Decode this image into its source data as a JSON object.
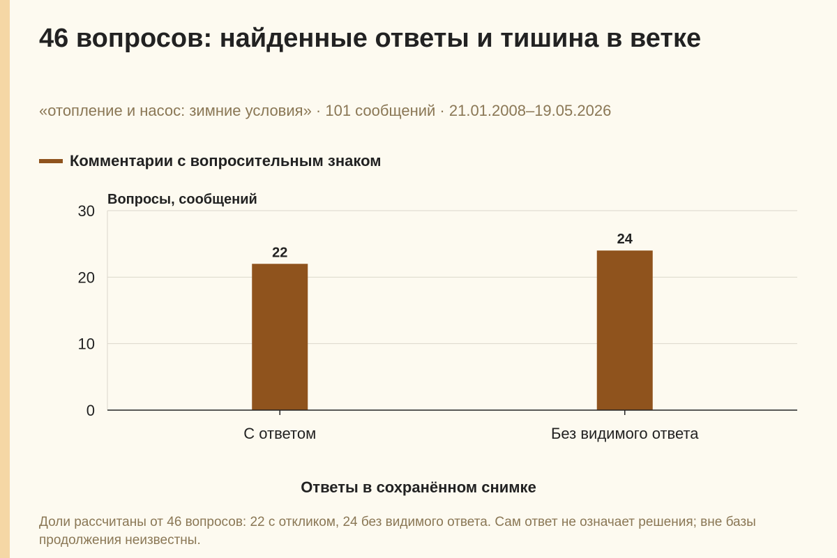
{
  "title": "46 вопросов: найденные ответы и тишина в ветке",
  "subtitle": "«отопление и насос: зимние условия» · 101 сообщений · 21.01.2008–19.05.2026",
  "note": "Доли рассчитаны от 46 вопросов: 22 с откликом, 24 без видимого ответа. Сам ответ не означает решения; вне базы продолжения неизвестны.",
  "colors": {
    "bar": "#8f531d",
    "grid": "#dcd7cc",
    "axis": "#222222",
    "accent_strip": "#f5d7a5"
  },
  "chart_data": {
    "type": "bar",
    "categories": [
      "С ответом",
      "Без видимого ответа"
    ],
    "series": [
      {
        "name": "Комментарии с вопросительным знаком",
        "values": [
          22,
          24
        ]
      }
    ],
    "data_labels": [
      "22",
      "24"
    ],
    "xlabel": "Ответы в сохранённом снимке",
    "ylabel": "Вопросы, сообщений",
    "ylim": [
      0,
      30
    ],
    "yticks": [
      0,
      10,
      20,
      30
    ],
    "grid": true,
    "legend_position": "top-left"
  }
}
